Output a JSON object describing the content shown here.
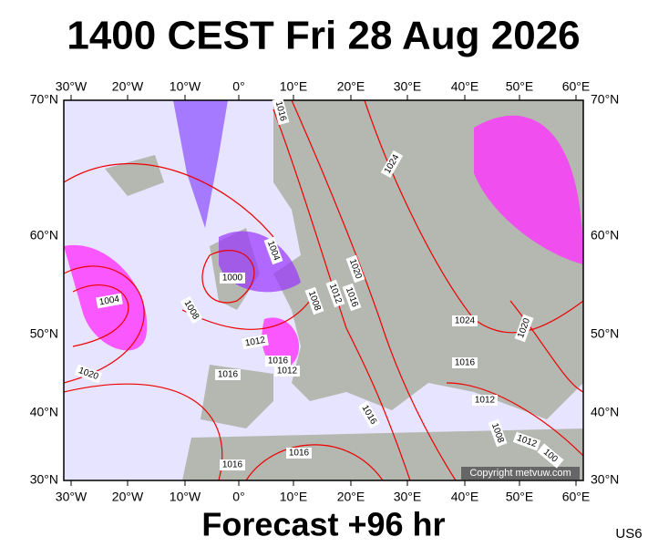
{
  "header": {
    "title": "1400 CEST Fri 28 Aug 2026"
  },
  "map": {
    "lon_labels": [
      "30°W",
      "20°W",
      "10°W",
      "0°",
      "10°E",
      "20°E",
      "30°E",
      "40°E",
      "50°E",
      "60°E"
    ],
    "lat_labels": [
      "70°N",
      "60°N",
      "50°N",
      "40°N",
      "30°N"
    ],
    "isobar_labels": [
      "1016",
      "1024",
      "1004",
      "1000",
      "1004",
      "1008",
      "1012",
      "1016",
      "1016",
      "1012",
      "1008",
      "1012",
      "1016",
      "1020",
      "1024",
      "1020",
      "1016",
      "1012",
      "1008",
      "1012",
      "100",
      "1020",
      "1016",
      "1016",
      "1016"
    ],
    "copyright": "Copyright metvuw.com"
  },
  "footer": {
    "forecast": "Forecast +96 hr",
    "code": "US6"
  }
}
